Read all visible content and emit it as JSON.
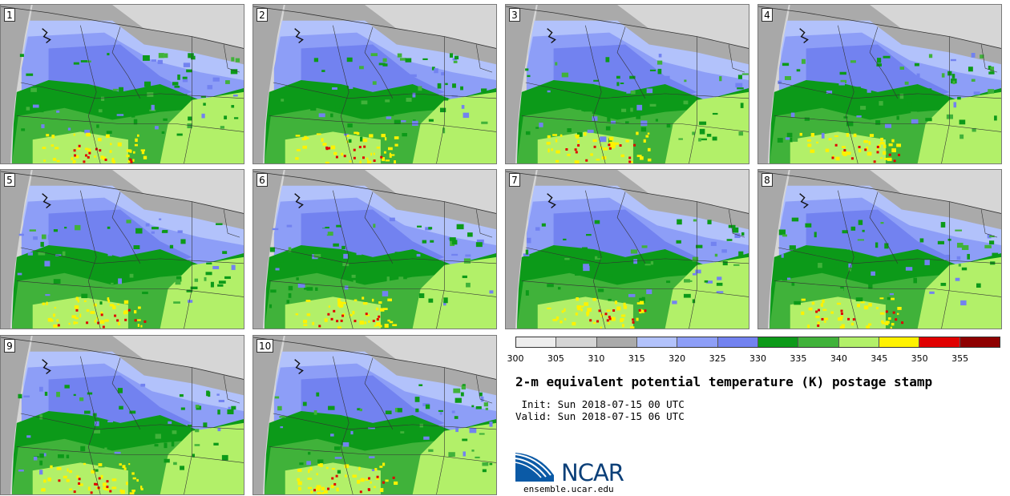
{
  "title": "2-m equivalent potential temperature (K) postage stamp",
  "init_line": " Init: Sun 2018-07-15 00 UTC",
  "valid_line": "Valid: Sun 2018-07-15 06 UTC",
  "members": [
    "1",
    "2",
    "3",
    "4",
    "5",
    "6",
    "7",
    "8",
    "9",
    "10"
  ],
  "colorbar": {
    "ticks": [
      "300",
      "305",
      "310",
      "315",
      "320",
      "325",
      "330",
      "335",
      "340",
      "345",
      "350",
      "355"
    ],
    "colors": [
      "#ededed",
      "#d5d5d5",
      "#aaaaaa",
      "#b2c2fb",
      "#8d9ef7",
      "#7282f0",
      "#0c9a19",
      "#40b23a",
      "#b2f069",
      "#fff200",
      "#e00000",
      "#8e0000"
    ]
  },
  "logo": {
    "text": "NCAR",
    "site": "ensemble.ucar.edu"
  },
  "map_colors": {
    "ocean": "#a8a8a8",
    "canada": "#d6d6d6",
    "boundary": "#333333"
  }
}
